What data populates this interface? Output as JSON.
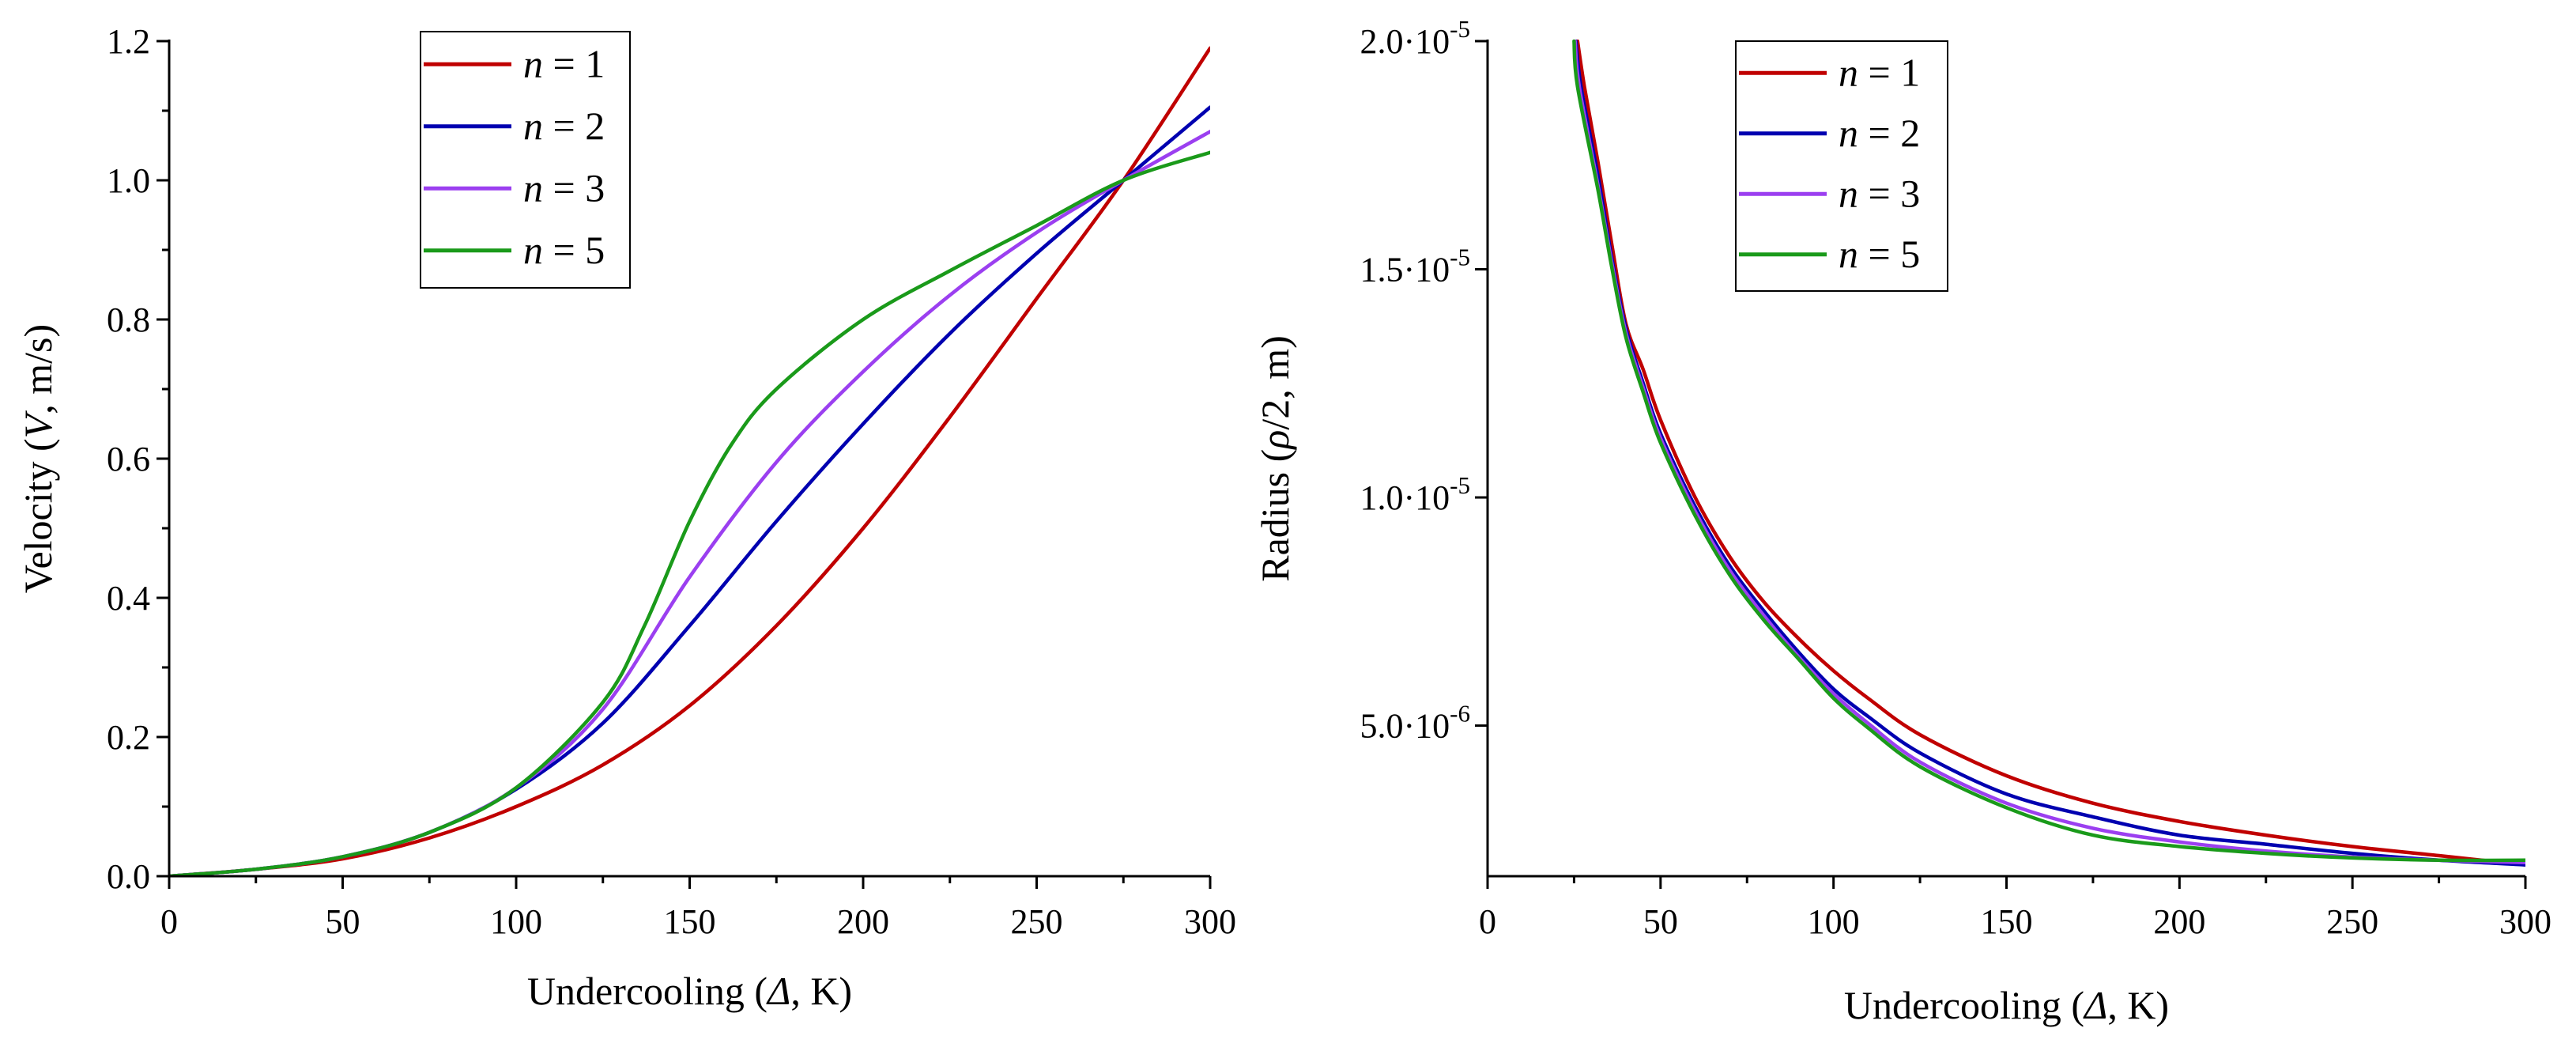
{
  "chart_data": [
    {
      "type": "line",
      "xlabel": {
        "prefix": "Undercooling (",
        "symbol": "Δ",
        "suffix": ", K)"
      },
      "ylabel": {
        "prefix": "Velocity (",
        "symbol": "V",
        "suffix": ", m/s)"
      },
      "xlim": [
        0,
        300
      ],
      "ylim": [
        0,
        1.2
      ],
      "x_ticks": [
        0,
        50,
        100,
        150,
        200,
        250,
        300
      ],
      "x_tick_labels": [
        "0",
        "50",
        "100",
        "150",
        "200",
        "250",
        "300"
      ],
      "y_ticks": [
        0,
        0.2,
        0.4,
        0.6,
        0.8,
        1.0,
        1.2
      ],
      "y_tick_labels": [
        "0.0",
        "0.2",
        "0.4",
        "0.6",
        "0.8",
        "1.0",
        "1.2"
      ],
      "legend_position": "top-left",
      "series": [
        {
          "name": "n = 1",
          "symbol": "n",
          "rest": " = 1",
          "color": "#c00000",
          "x": [
            0,
            25,
            50,
            75,
            100,
            125,
            150,
            175,
            200,
            225,
            250,
            275,
            300
          ],
          "y": [
            0.0,
            0.01,
            0.025,
            0.055,
            0.1,
            0.16,
            0.245,
            0.36,
            0.5,
            0.66,
            0.83,
            1.0,
            1.19
          ]
        },
        {
          "name": "n = 2",
          "symbol": "n",
          "rest": " = 2",
          "color": "#0000b0",
          "x": [
            0,
            25,
            50,
            75,
            100,
            125,
            150,
            175,
            200,
            225,
            250,
            275,
            300
          ],
          "y": [
            0.0,
            0.01,
            0.028,
            0.063,
            0.125,
            0.22,
            0.36,
            0.51,
            0.65,
            0.78,
            0.895,
            1.0,
            1.105
          ]
        },
        {
          "name": "n = 3",
          "symbol": "n",
          "rest": " = 3",
          "color": "#9b3ff0",
          "x": [
            0,
            25,
            50,
            75,
            100,
            125,
            150,
            175,
            200,
            225,
            250,
            275,
            300
          ],
          "y": [
            0.0,
            0.01,
            0.028,
            0.063,
            0.127,
            0.24,
            0.43,
            0.595,
            0.725,
            0.835,
            0.925,
            1.0,
            1.07
          ]
        },
        {
          "name": "n = 5",
          "symbol": "n",
          "rest": " = 5",
          "color": "#1a9a1a",
          "x": [
            0,
            25,
            50,
            75,
            100,
            125,
            137,
            150,
            162,
            175,
            200,
            225,
            250,
            275,
            300
          ],
          "y": [
            0.0,
            0.01,
            0.028,
            0.063,
            0.127,
            0.25,
            0.36,
            0.51,
            0.62,
            0.7,
            0.8,
            0.87,
            0.935,
            1.0,
            1.04
          ]
        }
      ]
    },
    {
      "type": "line",
      "xlabel": {
        "prefix": "Undercooling (",
        "symbol": "Δ",
        "suffix": ", K)"
      },
      "ylabel": {
        "prefix": "Radius (",
        "symbol": "ρ",
        "suffix": "/2, m)"
      },
      "xlim": [
        0,
        300
      ],
      "ylim": [
        1.7e-06,
        2e-05
      ],
      "x_ticks": [
        0,
        50,
        100,
        150,
        200,
        250,
        300
      ],
      "x_tick_labels": [
        "0",
        "50",
        "100",
        "150",
        "200",
        "250",
        "300"
      ],
      "y_ticks": [
        5e-06,
        1e-05,
        1.5e-05,
        2e-05
      ],
      "y_tick_labels": [
        {
          "mantissa": "5.0",
          "exponent": "-6"
        },
        {
          "mantissa": "1.0",
          "exponent": "-5"
        },
        {
          "mantissa": "1.5",
          "exponent": "-5"
        },
        {
          "mantissa": "2.0",
          "exponent": "-5"
        }
      ],
      "legend_position": "top-right",
      "series": [
        {
          "name": "n = 1",
          "symbol": "n",
          "rest": " = 1",
          "color": "#c00000",
          "x": [
            26,
            28,
            32,
            36,
            40,
            45,
            50,
            60,
            70,
            80,
            90,
            100,
            110,
            125,
            150,
            175,
            200,
            225,
            250,
            275,
            300
          ],
          "y": [
            2e-05,
            1.9e-05,
            1.73e-05,
            1.55e-05,
            1.38e-05,
            1.28e-05,
            1.17e-05,
            1e-05,
            8.7e-06,
            7.7e-06,
            6.9e-06,
            6.2e-06,
            5.6e-06,
            4.8e-06,
            3.9e-06,
            3.3e-06,
            2.9e-06,
            2.6e-06,
            2.35e-06,
            2.15e-06,
            1.95e-06
          ]
        },
        {
          "name": "n = 2",
          "symbol": "n",
          "rest": " = 2",
          "color": "#0000b0",
          "x": [
            25.5,
            27,
            32,
            36,
            40,
            45,
            50,
            60,
            70,
            80,
            90,
            100,
            110,
            125,
            150,
            175,
            200,
            225,
            250,
            275,
            300
          ],
          "y": [
            2e-05,
            1.9e-05,
            1.7e-05,
            1.52e-05,
            1.37e-05,
            1.25e-05,
            1.14e-05,
            9.8e-06,
            8.5e-06,
            7.5e-06,
            6.6e-06,
            5.8e-06,
            5.2e-06,
            4.4e-06,
            3.5e-06,
            3e-06,
            2.6e-06,
            2.4e-06,
            2.2e-06,
            2.05e-06,
            1.95e-06
          ]
        },
        {
          "name": "n = 3",
          "symbol": "n",
          "rest": " = 3",
          "color": "#9b3ff0",
          "x": [
            25.3,
            26.5,
            32,
            36,
            40,
            45,
            50,
            60,
            70,
            80,
            90,
            100,
            110,
            125,
            150,
            175,
            200,
            225,
            250,
            275,
            300
          ],
          "y": [
            2e-05,
            1.9e-05,
            1.68e-05,
            1.51e-05,
            1.36e-05,
            1.24e-05,
            1.13e-05,
            9.7e-06,
            8.4e-06,
            7.4e-06,
            6.5e-06,
            5.7e-06,
            5.05e-06,
            4.2e-06,
            3.3e-06,
            2.75e-06,
            2.45e-06,
            2.25e-06,
            2.12e-06,
            2.05e-06,
            2e-06
          ]
        },
        {
          "name": "n = 5",
          "symbol": "n",
          "rest": " = 5",
          "color": "#1a9a1a",
          "x": [
            25,
            26,
            32,
            36,
            40,
            45,
            50,
            60,
            70,
            80,
            90,
            100,
            110,
            125,
            150,
            175,
            200,
            225,
            250,
            275,
            300
          ],
          "y": [
            2e-05,
            1.9e-05,
            1.67e-05,
            1.5e-05,
            1.35e-05,
            1.23e-05,
            1.12e-05,
            9.6e-06,
            8.3e-06,
            7.3e-06,
            6.45e-06,
            5.6e-06,
            4.95e-06,
            4.1e-06,
            3.2e-06,
            2.6e-06,
            2.35e-06,
            2.2e-06,
            2.1e-06,
            2.05e-06,
            2.05e-06
          ]
        }
      ]
    }
  ]
}
